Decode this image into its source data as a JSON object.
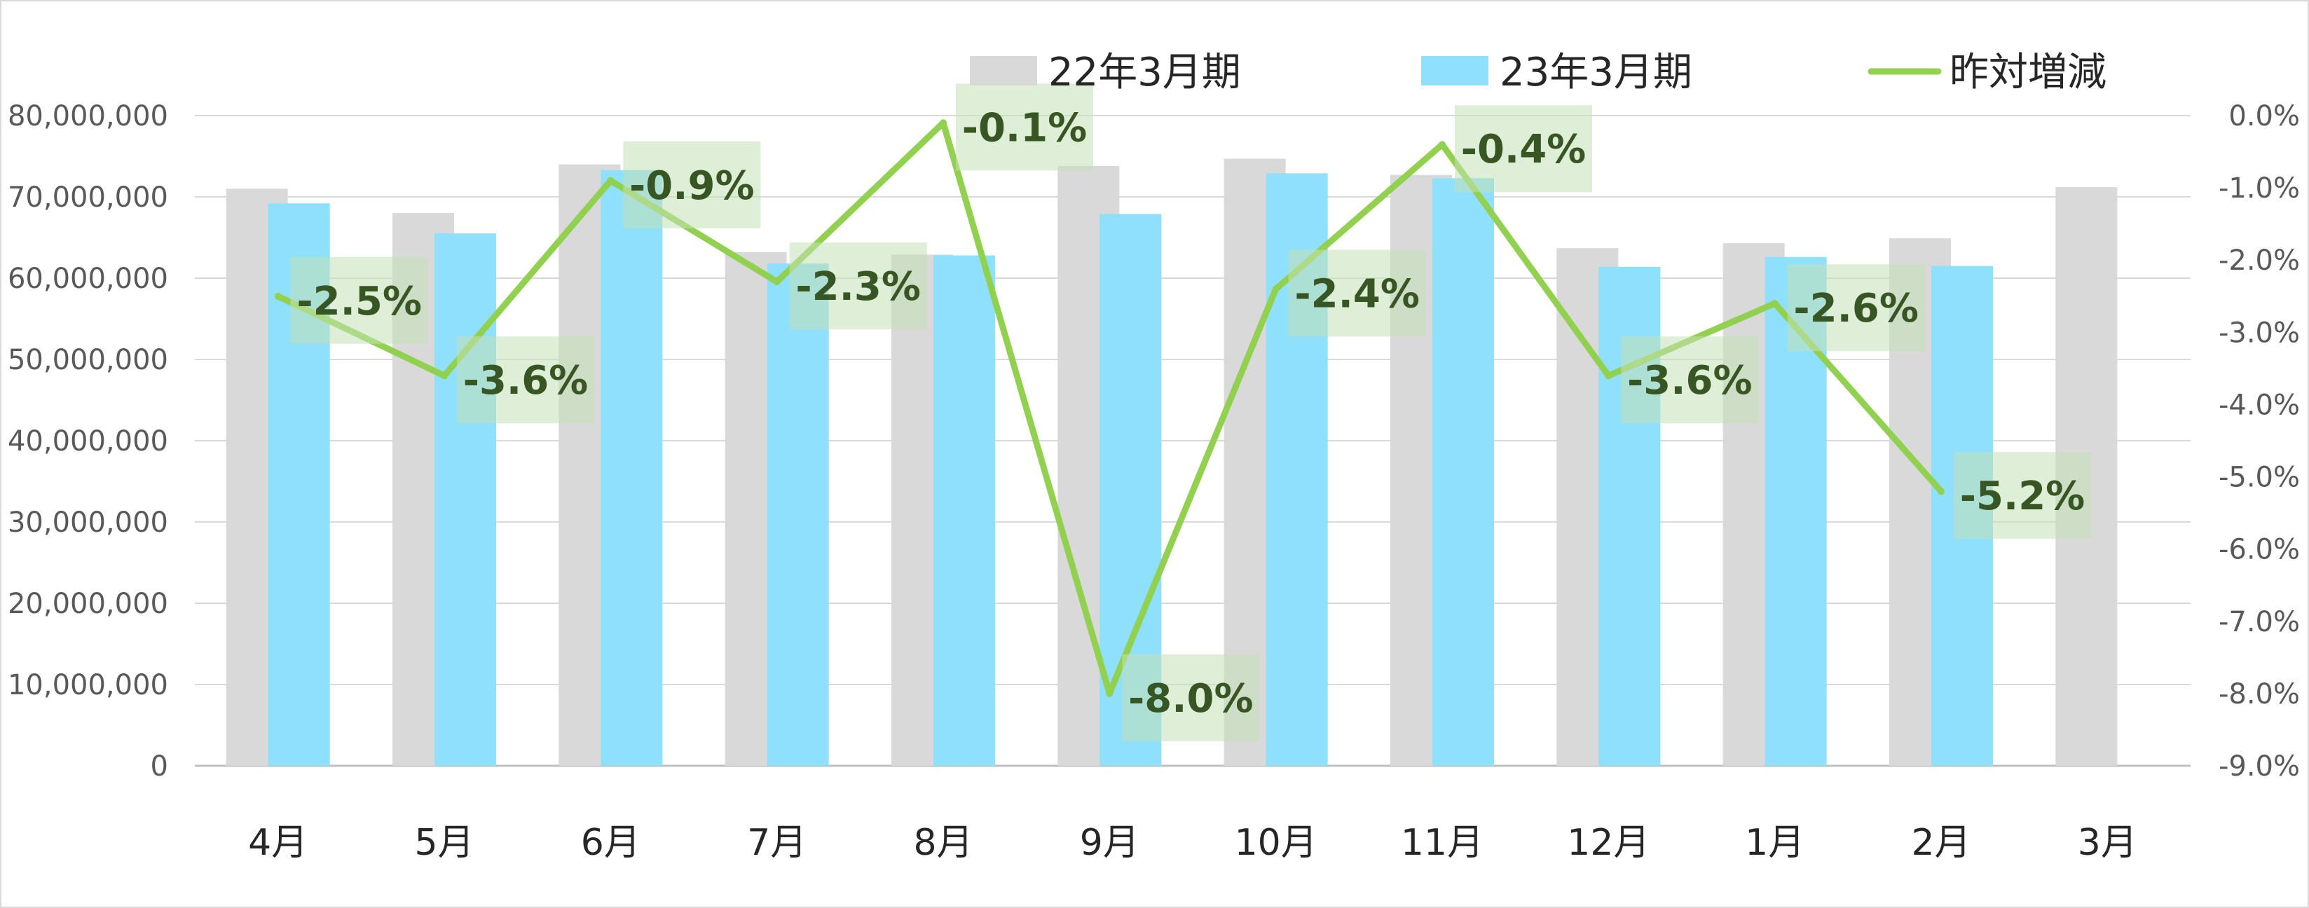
{
  "chart_data": {
    "type": "bar",
    "categories": [
      "4月",
      "5月",
      "6月",
      "7月",
      "8月",
      "9月",
      "10月",
      "11月",
      "12月",
      "1月",
      "2月",
      "3月"
    ],
    "series": [
      {
        "name": "22年3月期",
        "kind": "bar",
        "axis": "left",
        "color": "#d9d9d9",
        "values": [
          71000000,
          68000000,
          74000000,
          63200000,
          62900000,
          73800000,
          74700000,
          72700000,
          63700000,
          64300000,
          64900000,
          71200000
        ]
      },
      {
        "name": "23年3月期",
        "kind": "bar",
        "axis": "left",
        "color": "#8ee0fc",
        "values": [
          69200000,
          65500000,
          73300000,
          61800000,
          62800000,
          67900000,
          72900000,
          72300000,
          61400000,
          62600000,
          61500000,
          null
        ]
      },
      {
        "name": "昨対増減",
        "kind": "line",
        "axis": "right",
        "color": "#92d050",
        "values": [
          -2.5,
          -3.6,
          -0.9,
          -2.3,
          -0.1,
          -8.0,
          -2.4,
          -0.4,
          -3.6,
          -2.6,
          -5.2,
          null
        ],
        "labels": [
          "-2.5%",
          "-3.6%",
          "-0.9%",
          "-2.3%",
          "-0.1%",
          "-8.0%",
          "-2.4%",
          "-0.4%",
          "-3.6%",
          "-2.6%",
          "-5.2%",
          null
        ]
      }
    ],
    "y_left": {
      "ylim": [
        0,
        80000000
      ],
      "ticks": [
        0,
        10000000,
        20000000,
        30000000,
        40000000,
        50000000,
        60000000,
        70000000,
        80000000
      ],
      "tick_labels": [
        "0",
        "10,000,000",
        "20,000,000",
        "30,000,000",
        "40,000,000",
        "50,000,000",
        "60,000,000",
        "70,000,000",
        "80,000,000"
      ]
    },
    "y_right": {
      "ylim": [
        -9.0,
        0.0
      ],
      "ticks": [
        0.0,
        -1.0,
        -2.0,
        -3.0,
        -4.0,
        -5.0,
        -6.0,
        -7.0,
        -8.0,
        -9.0
      ],
      "tick_labels": [
        "0.0%",
        "-1.0%",
        "-2.0%",
        "-3.0%",
        "-4.0%",
        "-5.0%",
        "-6.0%",
        "-7.0%",
        "-8.0%",
        "-9.0%"
      ]
    },
    "grid": true,
    "legend_position": "top-right",
    "title": "",
    "xlabel": "",
    "ylabel": ""
  }
}
